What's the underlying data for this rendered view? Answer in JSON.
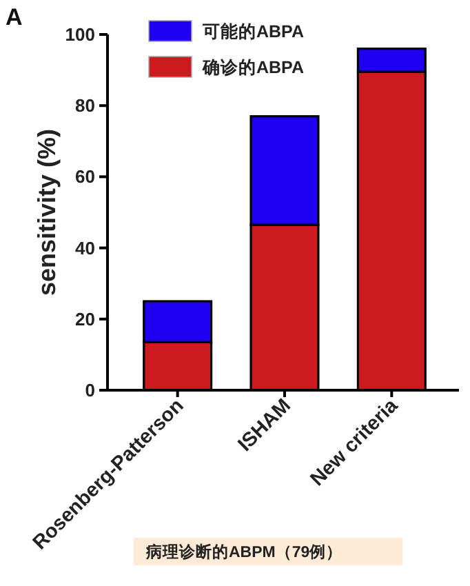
{
  "chart_data": {
    "type": "bar",
    "stacked": true,
    "categories": [
      "Rosenberg-Patterson",
      "ISHAM",
      "New criteria"
    ],
    "ylabel": "sensitivity (%)",
    "ylim": [
      0,
      100
    ],
    "yticks": [
      0,
      20,
      40,
      60,
      80,
      100
    ],
    "series": [
      {
        "name": "确诊的ABPA",
        "color": "#cc1a1e",
        "values": [
          13.5,
          46.5,
          89.5
        ]
      },
      {
        "name": "可能的ABPA",
        "color": "#1f00f0",
        "values": [
          11.5,
          30.5,
          6.5
        ]
      }
    ],
    "legend": "top",
    "annotations": [
      "A",
      "病理诊断的ABPM（79例）"
    ]
  }
}
